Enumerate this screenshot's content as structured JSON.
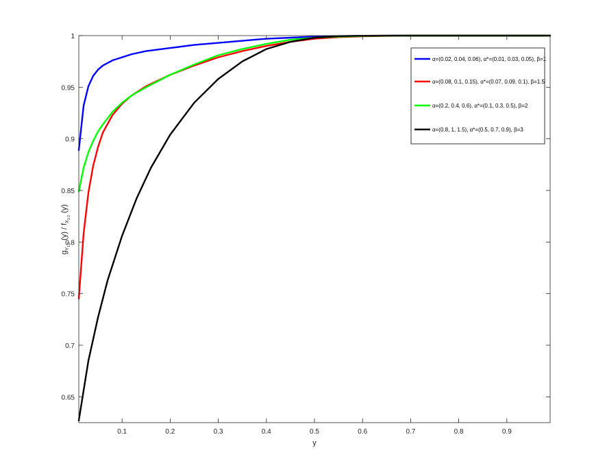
{
  "chart_data": {
    "type": "line",
    "xlabel": "y",
    "ylabel": "g_{Y_{1:3}}(y) / f_{X_{1:3}}(y)",
    "xlim": [
      0.01,
      0.99
    ],
    "ylim": [
      0.625,
      1.0
    ],
    "xticks": [
      0.1,
      0.2,
      0.3,
      0.4,
      0.5,
      0.6,
      0.7,
      0.8,
      0.9
    ],
    "xtick_labels": [
      "0.1",
      "0.2",
      "0.3",
      "0.4",
      "0.5",
      "0.6",
      "0.7",
      "0.8",
      "0.9"
    ],
    "yticks": [
      0.65,
      0.7,
      0.75,
      0.8,
      0.85,
      0.9,
      0.95,
      1
    ],
    "ytick_labels": [
      "0.65",
      "0.7",
      "0.75",
      "0.8",
      "0.85",
      "0.9",
      "0.95",
      "1"
    ],
    "grid": false,
    "legend_position": "top-right",
    "series": [
      {
        "name": "α=(0.02, 0.04, 0.06), α*=(0.01, 0.03, 0.05), β=1",
        "color": "#0000ff",
        "x": [
          0.01,
          0.02,
          0.03,
          0.04,
          0.05,
          0.06,
          0.08,
          0.1,
          0.12,
          0.15,
          0.2,
          0.25,
          0.3,
          0.35,
          0.4,
          0.45,
          0.5,
          0.55,
          0.6,
          0.7,
          0.8,
          0.9,
          0.99
        ],
        "y": [
          0.889,
          0.932,
          0.951,
          0.961,
          0.967,
          0.971,
          0.976,
          0.979,
          0.982,
          0.985,
          0.988,
          0.991,
          0.993,
          0.995,
          0.997,
          0.998,
          0.999,
          0.9995,
          0.9998,
          1.0,
          1.0,
          1.0,
          1.0
        ]
      },
      {
        "name": "α=(0.08, 0.1, 0.15), α*=(0.07, 0.09, 0.1), β=1.5",
        "color": "#ff0000",
        "x": [
          0.01,
          0.02,
          0.03,
          0.04,
          0.05,
          0.06,
          0.08,
          0.1,
          0.12,
          0.15,
          0.2,
          0.25,
          0.3,
          0.35,
          0.4,
          0.45,
          0.5,
          0.55,
          0.6,
          0.65,
          0.7,
          0.8,
          0.9,
          0.99
        ],
        "y": [
          0.745,
          0.808,
          0.848,
          0.874,
          0.892,
          0.906,
          0.923,
          0.934,
          0.942,
          0.951,
          0.962,
          0.971,
          0.979,
          0.985,
          0.99,
          0.994,
          0.997,
          0.9985,
          0.9993,
          0.9997,
          1.0,
          1.0,
          1.0,
          1.0
        ]
      },
      {
        "name": "α=(0.2, 0.4, 0.6), α*=(0.1, 0.3, 0.5), β=2",
        "color": "#00ff00",
        "x": [
          0.01,
          0.02,
          0.03,
          0.04,
          0.05,
          0.06,
          0.08,
          0.1,
          0.12,
          0.15,
          0.2,
          0.25,
          0.3,
          0.35,
          0.4,
          0.45,
          0.5,
          0.55,
          0.6,
          0.65,
          0.7,
          0.8,
          0.9,
          0.99
        ],
        "y": [
          0.849,
          0.872,
          0.887,
          0.898,
          0.907,
          0.914,
          0.926,
          0.935,
          0.942,
          0.95,
          0.962,
          0.972,
          0.981,
          0.987,
          0.992,
          0.996,
          0.998,
          0.999,
          0.9996,
          0.9999,
          1.0,
          1.0,
          1.0,
          1.0
        ]
      },
      {
        "name": "α=(0.8, 1, 1.5), α*=(0.5, 0.7, 0.9), β=3",
        "color": "#000000",
        "x": [
          0.01,
          0.03,
          0.05,
          0.07,
          0.1,
          0.13,
          0.16,
          0.2,
          0.25,
          0.3,
          0.35,
          0.4,
          0.45,
          0.5,
          0.55,
          0.6,
          0.65,
          0.7,
          0.8,
          0.9,
          0.99
        ],
        "y": [
          0.627,
          0.685,
          0.727,
          0.763,
          0.806,
          0.842,
          0.872,
          0.904,
          0.935,
          0.958,
          0.975,
          0.987,
          0.994,
          0.998,
          0.9995,
          0.9999,
          1.0,
          1.0,
          1.0,
          1.0,
          1.0
        ]
      }
    ]
  }
}
